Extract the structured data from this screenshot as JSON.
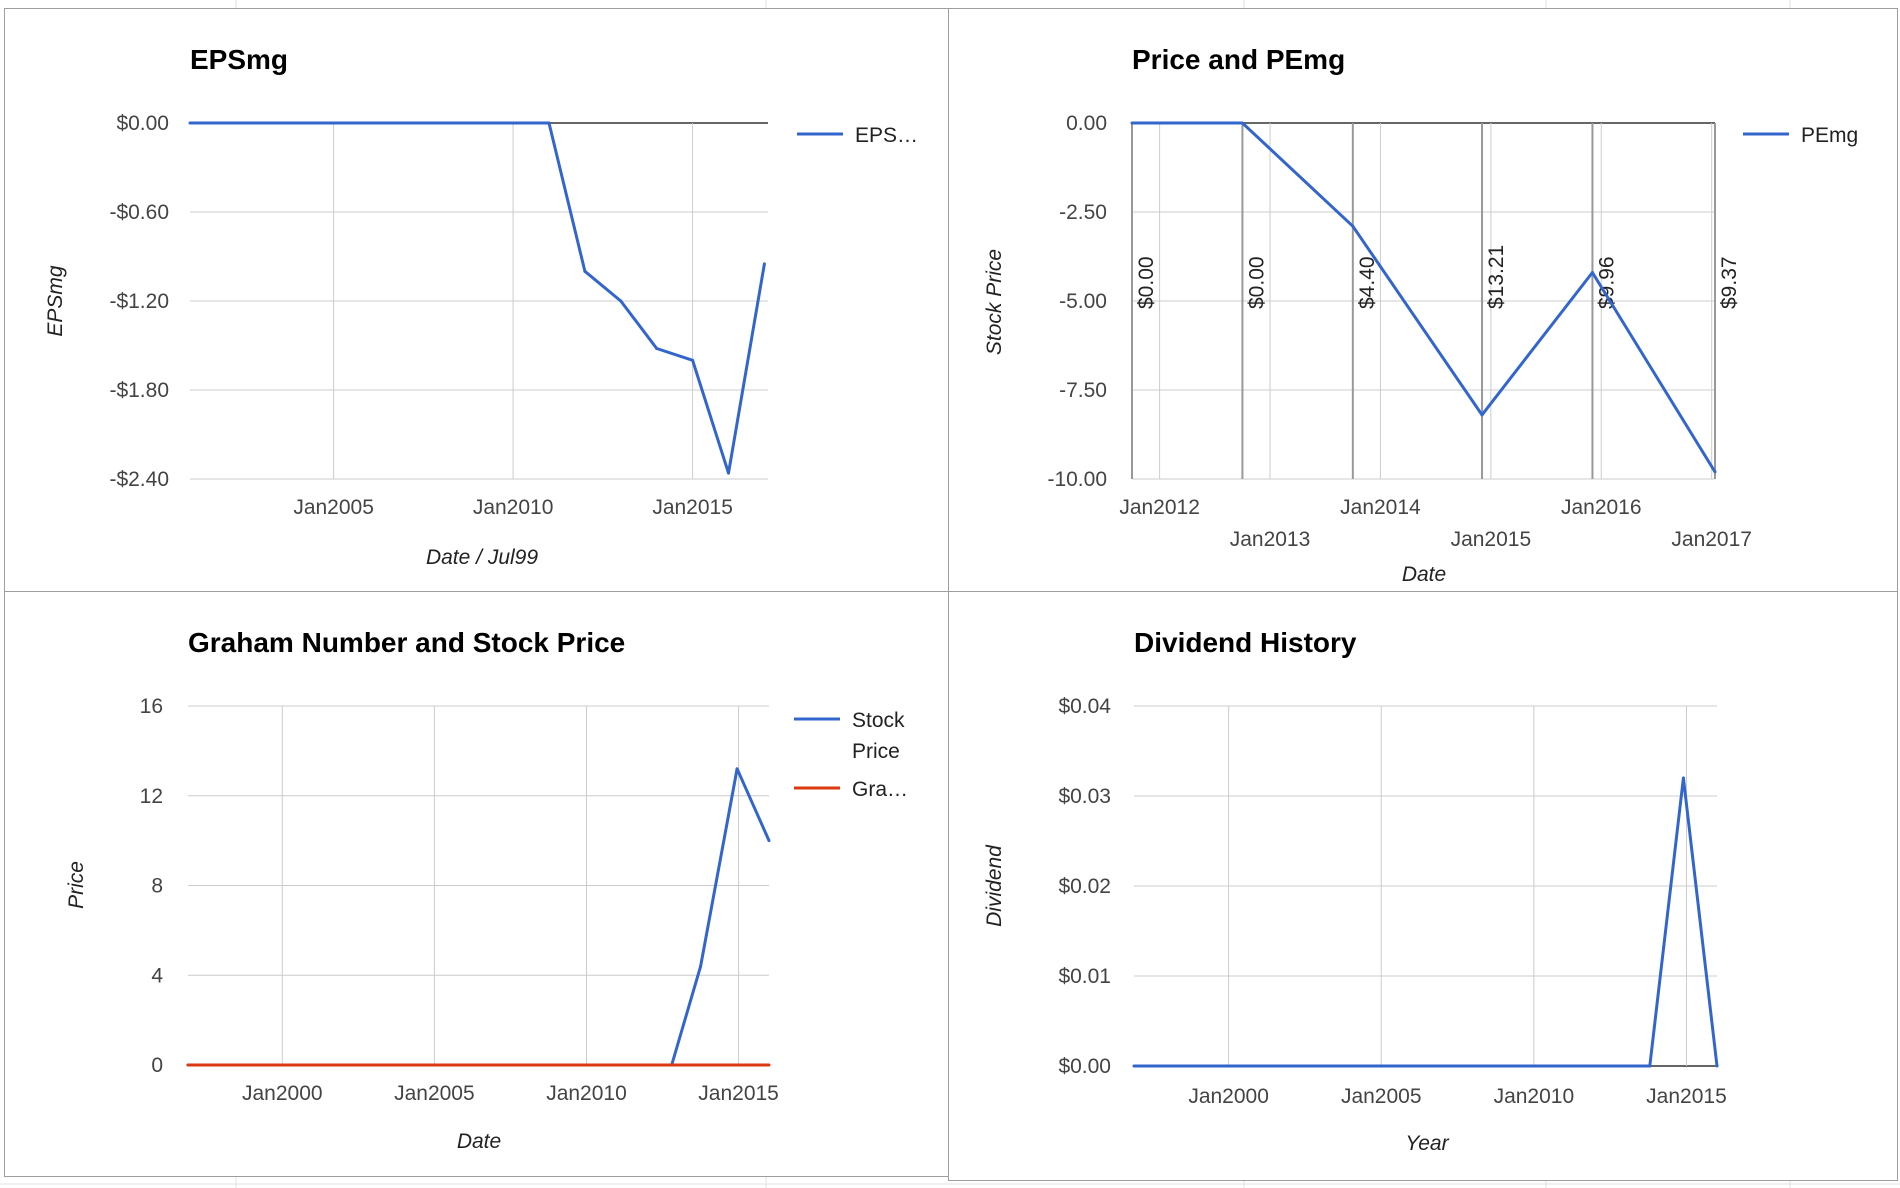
{
  "colors": {
    "series_blue": "#3366cc",
    "series_red": "#dc3912",
    "grid": "#cccccc",
    "baseline": "#333333",
    "annotation_line": "#999999"
  },
  "chart_data": [
    {
      "id": "eps",
      "type": "line",
      "title": "EPSmg",
      "xlabel": "Date / Jul99",
      "ylabel": "EPSmg",
      "xlim": [
        2001.0,
        2017.1
      ],
      "ylim": [
        -2.4,
        0
      ],
      "yticks": [
        {
          "value": 0,
          "label": "$0.00"
        },
        {
          "value": -0.6,
          "label": "-$0.60"
        },
        {
          "value": -1.2,
          "label": "-$1.20"
        },
        {
          "value": -1.8,
          "label": "-$1.80"
        },
        {
          "value": -2.4,
          "label": "-$2.40"
        }
      ],
      "xticks": [
        {
          "value": 2005,
          "label": "Jan2005"
        },
        {
          "value": 2010,
          "label": "Jan2010"
        },
        {
          "value": 2015,
          "label": "Jan2015"
        }
      ],
      "legend_position": "right",
      "series": [
        {
          "name": "EPS…",
          "color": "#3366cc",
          "x": [
            2001.0,
            2011.0,
            2012.0,
            2013.0,
            2014.0,
            2015.0,
            2016.0,
            2017.0
          ],
          "y": [
            0,
            0,
            -1.0,
            -1.2,
            -1.52,
            -1.6,
            -2.36,
            -0.95
          ]
        }
      ]
    },
    {
      "id": "pe",
      "type": "line",
      "title": "Price and PEmg",
      "xlabel": "Date",
      "ylabel": "Stock Price",
      "xlim": [
        2011.75,
        2017.03
      ],
      "ylim": [
        -10,
        0
      ],
      "yticks": [
        {
          "value": 0,
          "label": "0.00"
        },
        {
          "value": -2.5,
          "label": "-2.50"
        },
        {
          "value": -5,
          "label": "-5.00"
        },
        {
          "value": -7.5,
          "label": "-7.50"
        },
        {
          "value": -10,
          "label": "-10.00"
        }
      ],
      "xticks": [
        {
          "value": 2012,
          "label": "Jan2012",
          "row": 1
        },
        {
          "value": 2013,
          "label": "Jan2013",
          "row": 2
        },
        {
          "value": 2014,
          "label": "Jan2014",
          "row": 1
        },
        {
          "value": 2015,
          "label": "Jan2015",
          "row": 2
        },
        {
          "value": 2016,
          "label": "Jan2016",
          "row": 1
        },
        {
          "value": 2017,
          "label": "Jan2017",
          "row": 2
        }
      ],
      "legend_position": "right",
      "series": [
        {
          "name": "PEmg",
          "color": "#3366cc",
          "x": [
            2011.75,
            2012.75,
            2013.75,
            2014.92,
            2015.92,
            2017.03
          ],
          "y": [
            0,
            0,
            -2.9,
            -8.2,
            -4.2,
            -9.8
          ]
        }
      ],
      "annotations": [
        {
          "x": 2011.75,
          "label": "$0.00"
        },
        {
          "x": 2012.75,
          "label": "$0.00"
        },
        {
          "x": 2013.75,
          "label": "$4.40"
        },
        {
          "x": 2014.92,
          "label": "$13.21"
        },
        {
          "x": 2015.92,
          "label": "$9.96"
        },
        {
          "x": 2017.03,
          "label": "$9.37"
        }
      ]
    },
    {
      "id": "graham",
      "type": "line",
      "title": "Graham Number and Stock Price",
      "xlabel": "Date",
      "ylabel": "Price",
      "xlim": [
        1996.9,
        2016.0
      ],
      "ylim": [
        0,
        16
      ],
      "yticks": [
        {
          "value": 16,
          "label": "16"
        },
        {
          "value": 12,
          "label": "12"
        },
        {
          "value": 8,
          "label": "8"
        },
        {
          "value": 4,
          "label": "4"
        },
        {
          "value": 0,
          "label": "0"
        }
      ],
      "xticks": [
        {
          "value": 2000,
          "label": "Jan2000"
        },
        {
          "value": 2005,
          "label": "Jan2005"
        },
        {
          "value": 2010,
          "label": "Jan2010"
        },
        {
          "value": 2015,
          "label": "Jan2015"
        }
      ],
      "legend_position": "right",
      "series": [
        {
          "name": "Stock Price",
          "legend_lines": [
            "Stock",
            "Price"
          ],
          "color": "#3366cc",
          "x": [
            1996.9,
            2012.8,
            2013.75,
            2014.95,
            2016.0
          ],
          "y": [
            0,
            0,
            4.4,
            13.2,
            10.0
          ]
        },
        {
          "name": "Gra…",
          "legend_lines": [
            "Gra…"
          ],
          "color": "#dc3912",
          "x": [
            1996.9,
            2016.0
          ],
          "y": [
            0,
            0
          ]
        }
      ]
    },
    {
      "id": "dividend",
      "type": "line",
      "title": "Dividend History",
      "xlabel": "Year",
      "ylabel": "Dividend",
      "xlim": [
        1996.9,
        2016.0
      ],
      "ylim": [
        0,
        0.04
      ],
      "yticks": [
        {
          "value": 0.04,
          "label": "$0.04"
        },
        {
          "value": 0.03,
          "label": "$0.03"
        },
        {
          "value": 0.02,
          "label": "$0.02"
        },
        {
          "value": 0.01,
          "label": "$0.01"
        },
        {
          "value": 0,
          "label": "$0.00"
        }
      ],
      "xticks": [
        {
          "value": 2000,
          "label": "Jan2000"
        },
        {
          "value": 2005,
          "label": "Jan2005"
        },
        {
          "value": 2010,
          "label": "Jan2010"
        },
        {
          "value": 2015,
          "label": "Jan2015"
        }
      ],
      "legend_position": "none",
      "series": [
        {
          "color": "#3366cc",
          "x": [
            1996.9,
            2013.8,
            2014.9,
            2016.0
          ],
          "y": [
            0,
            0,
            0.032,
            0
          ]
        }
      ]
    }
  ]
}
